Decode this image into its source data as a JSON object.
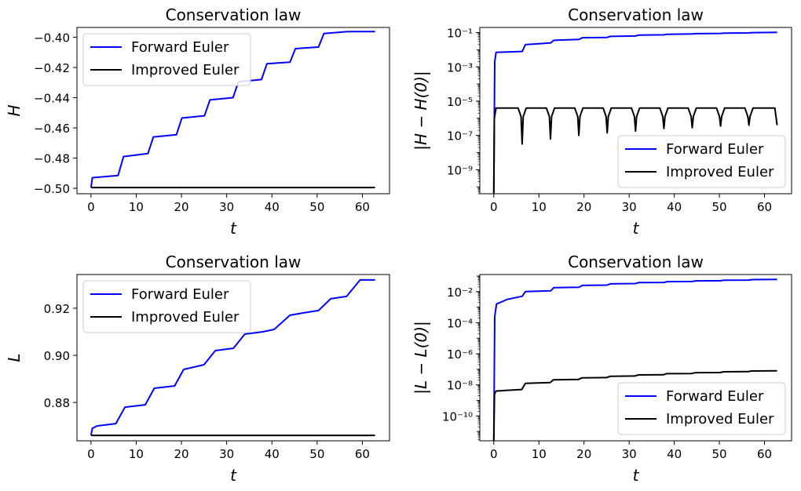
{
  "chart_data": [
    {
      "type": "line",
      "title": "Conservation law",
      "xlabel": "t",
      "ylabel": "H",
      "yscale": "linear",
      "xlim": [
        -3.1,
        66
      ],
      "ylim": [
        -0.5036,
        -0.3935
      ],
      "xticks": [
        0,
        10,
        20,
        30,
        40,
        50,
        60
      ],
      "xtick_labels": [
        "0",
        "10",
        "20",
        "30",
        "40",
        "50",
        "60"
      ],
      "yticks": [
        -0.5,
        -0.48,
        -0.46,
        -0.44,
        -0.42,
        -0.4
      ],
      "ytick_labels": [
        "−0.50",
        "−0.48",
        "−0.46",
        "−0.44",
        "−0.42",
        "−0.40"
      ],
      "legend_position": "top-left",
      "series": [
        {
          "name": "Forward Euler",
          "color": "#0000ff",
          "x": [
            0,
            0.3,
            6,
            7.2,
            12.6,
            13.8,
            18.9,
            20.1,
            25.1,
            26.3,
            31.4,
            32.6,
            37.7,
            38.9,
            44.0,
            45.2,
            50.3,
            51.5,
            56.5,
            57.7,
            62.8
          ],
          "y": [
            -0.4995,
            -0.493,
            -0.4915,
            -0.479,
            -0.477,
            -0.466,
            -0.4645,
            -0.4535,
            -0.452,
            -0.4415,
            -0.44,
            -0.4295,
            -0.428,
            -0.4175,
            -0.4165,
            -0.4075,
            -0.4065,
            -0.3975,
            -0.3963,
            -0.3962,
            -0.3962
          ]
        },
        {
          "name": "Improved Euler",
          "color": "#000000",
          "x": [
            0,
            62.8
          ],
          "y": [
            -0.4995,
            -0.4995
          ]
        }
      ]
    },
    {
      "type": "line",
      "title": "Conservation law",
      "xlabel": "t",
      "ylabel": "|H − H(0)|",
      "yscale": "log",
      "xlim": [
        -3.1,
        66
      ],
      "ylim_exp": [
        -10.4,
        -0.7
      ],
      "xticks": [
        0,
        10,
        20,
        30,
        40,
        50,
        60
      ],
      "xtick_labels": [
        "0",
        "10",
        "20",
        "30",
        "40",
        "50",
        "60"
      ],
      "ytick_exps": [
        -9,
        -7,
        -5,
        -3,
        -1
      ],
      "legend_position": "bottom-right",
      "series": [
        {
          "name": "Forward Euler",
          "color": "#0000ff",
          "x": [
            0,
            0.2,
            0.5,
            6.3,
            7.0,
            12.6,
            13.3,
            18.9,
            19.6,
            25.1,
            25.8,
            31.4,
            32.1,
            37.7,
            38.4,
            44.0,
            44.7,
            50.3,
            51.0,
            56.5,
            57.2,
            62.8
          ],
          "y_exp": [
            -10.4,
            -2.7,
            -2.15,
            -2.1,
            -1.7,
            -1.6,
            -1.45,
            -1.4,
            -1.3,
            -1.28,
            -1.22,
            -1.2,
            -1.15,
            -1.13,
            -1.1,
            -1.08,
            -1.06,
            -1.05,
            -1.03,
            -1.02,
            -1.0,
            -0.99
          ]
        },
        {
          "name": "Improved Euler",
          "color": "#000000",
          "dip_period": 6.283,
          "dip_depths_exp": [
            -7.5,
            -7.2,
            -7.0,
            -6.85,
            -6.75,
            -6.6,
            -6.55,
            -6.45,
            -6.4
          ],
          "end_exp": -6.4,
          "peak_exp": -5.4
        }
      ]
    },
    {
      "type": "line",
      "title": "Conservation law",
      "xlabel": "t",
      "ylabel": "L",
      "yscale": "linear",
      "xlim": [
        -3.1,
        66
      ],
      "ylim": [
        0.8637,
        0.9343
      ],
      "xticks": [
        0,
        10,
        20,
        30,
        40,
        50,
        60
      ],
      "xtick_labels": [
        "0",
        "10",
        "20",
        "30",
        "40",
        "50",
        "60"
      ],
      "yticks": [
        0.88,
        0.9,
        0.92
      ],
      "ytick_labels": [
        "0.88",
        "0.90",
        "0.92"
      ],
      "legend_position": "top-left",
      "series": [
        {
          "name": "Forward Euler",
          "color": "#0000ff",
          "x": [
            0,
            0.3,
            1.3,
            5.5,
            7.5,
            12.0,
            14.0,
            18.5,
            20.5,
            25.0,
            27.5,
            31.5,
            34.0,
            38.0,
            40.5,
            44.0,
            47.0,
            50.3,
            53.0,
            56.5,
            59.5,
            62.8
          ],
          "y": [
            0.866,
            0.869,
            0.87,
            0.871,
            0.878,
            0.879,
            0.886,
            0.887,
            0.894,
            0.896,
            0.902,
            0.903,
            0.909,
            0.91,
            0.911,
            0.917,
            0.918,
            0.919,
            0.924,
            0.925,
            0.932,
            0.932
          ]
        },
        {
          "name": "Improved Euler",
          "color": "#000000",
          "x": [
            0,
            62.8
          ],
          "y": [
            0.866,
            0.866
          ]
        }
      ]
    },
    {
      "type": "line",
      "title": "Conservation law",
      "xlabel": "t",
      "ylabel": "|L − L(0)|",
      "yscale": "log",
      "xlim": [
        -3.1,
        66
      ],
      "ylim_exp": [
        -11.6,
        -0.9
      ],
      "xticks": [
        0,
        10,
        20,
        30,
        40,
        50,
        60
      ],
      "xtick_labels": [
        "0",
        "10",
        "20",
        "30",
        "40",
        "50",
        "60"
      ],
      "ytick_exps": [
        -10,
        -8,
        -6,
        -4,
        -2
      ],
      "legend_position": "bottom-right",
      "series": [
        {
          "name": "Forward Euler",
          "color": "#0000ff",
          "x": [
            0,
            0.2,
            0.6,
            3.0,
            6.3,
            7.0,
            12.6,
            13.3,
            18.9,
            19.6,
            25.1,
            25.8,
            31.4,
            32.1,
            37.7,
            38.4,
            44.0,
            44.7,
            50.3,
            51.0,
            56.5,
            57.2,
            62.8
          ],
          "y_exp": [
            -11.6,
            -3.6,
            -2.8,
            -2.5,
            -2.3,
            -2.0,
            -1.95,
            -1.75,
            -1.72,
            -1.6,
            -1.58,
            -1.5,
            -1.48,
            -1.42,
            -1.41,
            -1.36,
            -1.35,
            -1.31,
            -1.3,
            -1.27,
            -1.26,
            -1.23,
            -1.22
          ]
        },
        {
          "name": "Improved Euler",
          "color": "#000000",
          "x": [
            0,
            0.15,
            0.5,
            3.0,
            6.2,
            7.0,
            12.5,
            13.2,
            18.8,
            19.5,
            25.0,
            25.8,
            31.3,
            32.0,
            37.6,
            38.3,
            43.9,
            44.6,
            50.2,
            50.9,
            56.4,
            57.1,
            62.8
          ],
          "y_exp": [
            -11.6,
            -8.6,
            -8.4,
            -8.35,
            -8.3,
            -7.9,
            -7.85,
            -7.68,
            -7.65,
            -7.55,
            -7.53,
            -7.45,
            -7.43,
            -7.36,
            -7.35,
            -7.28,
            -7.27,
            -7.22,
            -7.21,
            -7.16,
            -7.15,
            -7.11,
            -7.1
          ]
        }
      ]
    }
  ]
}
